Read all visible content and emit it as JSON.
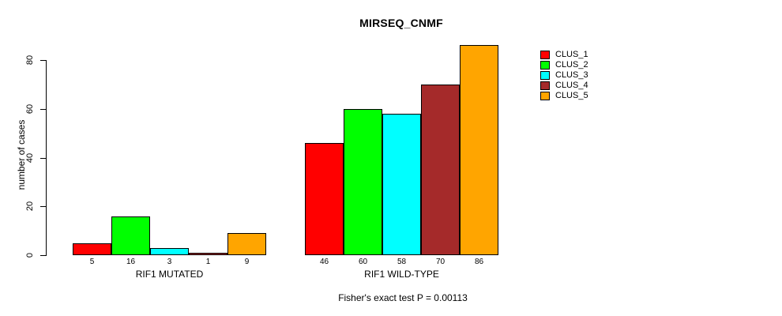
{
  "figure": {
    "title": "MIRSEQ_CNMF",
    "caption": "Fisher's exact test P = 0.00113"
  },
  "chart_data": {
    "type": "bar",
    "title": "MIRSEQ_CNMF",
    "xlabel": "",
    "ylabel": "number of cases",
    "ylim": [
      0,
      86
    ],
    "yticks": [
      0,
      20,
      40,
      60,
      80
    ],
    "grid": false,
    "legend_position": "top-right",
    "bar_value_labels_shown": true,
    "categories": [
      "RIF1 MUTATED",
      "RIF1 WILD-TYPE"
    ],
    "series": [
      {
        "name": "CLUS_1",
        "color": "#ff0000",
        "values": [
          5,
          46
        ]
      },
      {
        "name": "CLUS_2",
        "color": "#00ff00",
        "values": [
          16,
          60
        ]
      },
      {
        "name": "CLUS_3",
        "color": "#00ffff",
        "values": [
          3,
          58
        ]
      },
      {
        "name": "CLUS_4",
        "color": "#a52a2a",
        "values": [
          1,
          70
        ]
      },
      {
        "name": "CLUS_5",
        "color": "#ffa500",
        "values": [
          9,
          86
        ]
      }
    ],
    "caption": "Fisher's exact test P = 0.00113"
  }
}
